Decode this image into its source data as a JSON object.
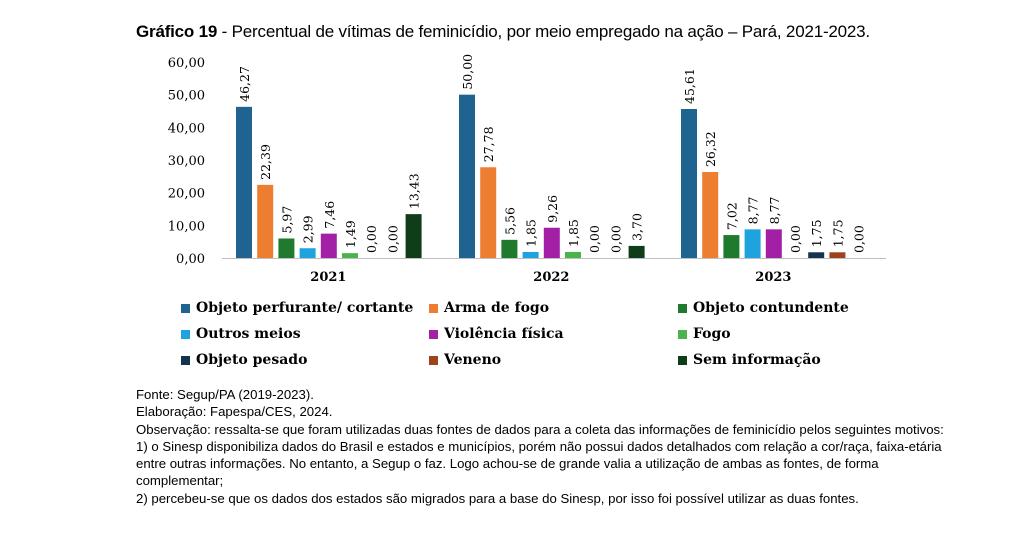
{
  "title": {
    "prefix": "Gráfico 19",
    "text": " - Percentual de vítimas de feminicídio, por meio empregado na ação – Pará, 2021-2023."
  },
  "chart_data": {
    "type": "bar",
    "title": "Percentual de vítimas de feminicídio, por meio empregado na ação – Pará, 2021-2023",
    "categories": [
      "2021",
      "2022",
      "2023"
    ],
    "ylim": [
      0,
      60
    ],
    "yticks": [
      "0,00",
      "10,00",
      "20,00",
      "30,00",
      "40,00",
      "50,00",
      "60,00"
    ],
    "series": [
      {
        "name": "Objeto perfurante/ cortante",
        "color": "#1F6391",
        "values": [
          46.27,
          50.0,
          45.61
        ],
        "labels": [
          "46,27",
          "50,00",
          "45,61"
        ]
      },
      {
        "name": "Arma de fogo",
        "color": "#ED7D31",
        "values": [
          22.39,
          27.78,
          26.32
        ],
        "labels": [
          "22,39",
          "27,78",
          "26,32"
        ]
      },
      {
        "name": "Objeto contundente",
        "color": "#207A2E",
        "values": [
          5.97,
          5.56,
          7.02
        ],
        "labels": [
          "5,97",
          "5,56",
          "7,02"
        ]
      },
      {
        "name": "Outros meios",
        "color": "#1FA3DF",
        "values": [
          2.99,
          1.85,
          8.77
        ],
        "labels": [
          "2,99",
          "1,85",
          "8,77"
        ]
      },
      {
        "name": "Violência física",
        "color": "#A21FA6",
        "values": [
          7.46,
          9.26,
          8.77
        ],
        "labels": [
          "7,46",
          "9,26",
          "8,77"
        ]
      },
      {
        "name": "Fogo",
        "color": "#4CB34C",
        "values": [
          1.49,
          1.85,
          0.0
        ],
        "labels": [
          "1,49",
          "1,85",
          "0,00"
        ]
      },
      {
        "name": "Objeto pesado",
        "color": "#17324E",
        "values": [
          0.0,
          0.0,
          1.75
        ],
        "labels": [
          "0,00",
          "0,00",
          "1,75"
        ]
      },
      {
        "name": "Veneno",
        "color": "#A0431A",
        "values": [
          0.0,
          0.0,
          1.75
        ],
        "labels": [
          "0,00",
          "0,00",
          "1,75"
        ]
      },
      {
        "name": "Sem informação",
        "color": "#0F3D1A",
        "values": [
          13.43,
          3.7,
          0.0
        ],
        "labels": [
          "13,43",
          "3,70",
          "0,00"
        ]
      }
    ]
  },
  "notes": {
    "source": "Fonte: Segup/PA (2019-2023).",
    "elaboration": "Elaboração: Fapespa/CES, 2024.",
    "observation": "Observação: ressalta-se que foram utilizadas duas fontes de dados para a coleta das informações de feminicídio pelos seguintes motivos:",
    "item1": "1) o Sinesp disponibiliza dados do Brasil e estados e municípios, porém não possui dados detalhados com relação a cor/raça, faixa-etária entre outras informações. No entanto, a Segup o faz. Logo achou-se de grande valia a utilização de ambas as fontes, de forma complementar;",
    "item2": "2) percebeu-se que os dados dos estados são migrados para a base do Sinesp, por isso foi possível utilizar as duas fontes."
  }
}
